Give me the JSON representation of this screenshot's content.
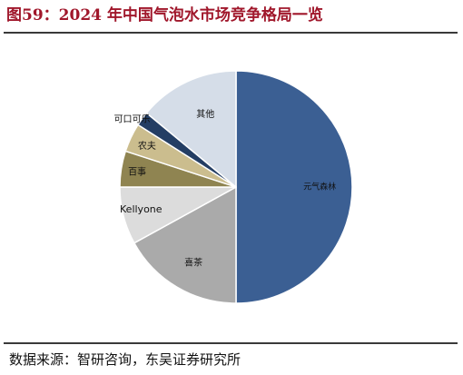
{
  "figure": {
    "title": "图59：2024 年中国气泡水市场竞争格局一览",
    "source": "数据来源：智研咨询，东吴证券研究所"
  },
  "chart_data": {
    "type": "pie",
    "title": "",
    "start_angle_deg": 0,
    "direction": "clockwise",
    "legend": "none",
    "slices": [
      {
        "label": "元气森林",
        "value": 50.0,
        "color": "#3b5f93",
        "label_color": "#111111"
      },
      {
        "label": "喜茶",
        "value": 17.0,
        "color": "#aaaaaa",
        "label_color": "#111111"
      },
      {
        "label": "Kellyone",
        "value": 8.0,
        "color": "#dcdcdc",
        "label_color": "#111111"
      },
      {
        "label": "百事",
        "value": 5.0,
        "color": "#8f8451",
        "label_color": "#111111"
      },
      {
        "label": "农夫",
        "value": 4.0,
        "color": "#cbbd8e",
        "label_color": "#111111"
      },
      {
        "label": "可口可乐",
        "value": 2.0,
        "color": "#243e64",
        "label_color": "#111111"
      },
      {
        "label": "其他",
        "value": 14.0,
        "color": "#d5dde8",
        "label_color": "#111111"
      }
    ]
  }
}
